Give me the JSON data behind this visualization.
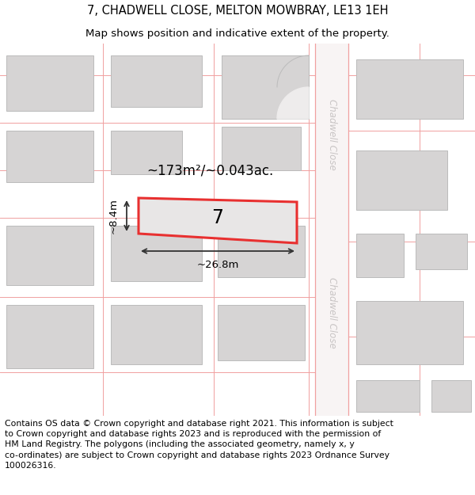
{
  "title": "7, CHADWELL CLOSE, MELTON MOWBRAY, LE13 1EH",
  "subtitle": "Map shows position and indicative extent of the property.",
  "footer": "Contains OS data © Crown copyright and database right 2021. This information is subject\nto Crown copyright and database rights 2023 and is reproduced with the permission of\nHM Land Registry. The polygons (including the associated geometry, namely x, y\nco-ordinates) are subject to Crown copyright and database rights 2023 Ordnance Survey\n100026316.",
  "map_bg": "#eeecec",
  "building_fill": "#d6d4d4",
  "building_edge": "#bbbbbb",
  "plot_fill": "#e8e6e6",
  "plot_outline": "#e83030",
  "road_fill": "#f8f4f4",
  "road_line_color": "#f0a0a0",
  "street_name_color": "#c8c4c4",
  "area_text": "~173m²/~0.043ac.",
  "plot_label": "7",
  "dim_width": "~26.8m",
  "dim_height": "~8.4m",
  "title_fontsize": 10.5,
  "subtitle_fontsize": 9.5,
  "footer_fontsize": 7.8
}
